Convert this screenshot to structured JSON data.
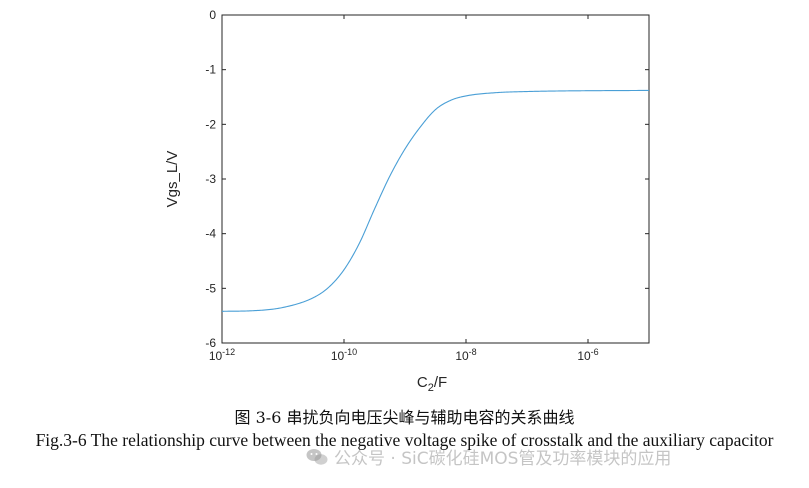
{
  "chart_data": {
    "type": "line",
    "xscale": "log",
    "xlim_exponent": [
      -12,
      -5
    ],
    "ylim": [
      -6,
      0
    ],
    "yticks": [
      0,
      -1,
      -2,
      -3,
      -4,
      -5,
      -6
    ],
    "ytick_labels": [
      "0",
      "-1",
      "-2",
      "-3",
      "-4",
      "-5",
      "-6"
    ],
    "xtick_exponents": [
      -12,
      -10,
      -8,
      -6
    ],
    "xtick_base": "10",
    "xtick_sup": [
      "-12",
      "-10",
      "-8",
      "-6"
    ],
    "xlabel_main": "C",
    "xlabel_sub": "2",
    "xlabel_unit": "/F",
    "ylabel": "Vgs_L/V",
    "series": [
      {
        "name": "Vgs_L",
        "color": "#4a9fd6",
        "log10_x": [
          -12,
          -11.5,
          -11,
          -10.5,
          -10.25,
          -10,
          -9.75,
          -9.5,
          -9.25,
          -9,
          -8.75,
          -8.5,
          -8.25,
          -8,
          -7.5,
          -7,
          -6.5,
          -6,
          -5
        ],
        "y": [
          -5.42,
          -5.41,
          -5.35,
          -5.17,
          -4.98,
          -4.66,
          -4.18,
          -3.55,
          -2.95,
          -2.45,
          -2.05,
          -1.73,
          -1.56,
          -1.48,
          -1.42,
          -1.4,
          -1.39,
          -1.385,
          -1.38
        ]
      }
    ]
  },
  "caption": {
    "chinese": "图 3-6 串扰负向电压尖峰与辅助电容的关系曲线",
    "english": "Fig.3-6 The relationship curve between the negative voltage spike of crosstalk and the auxiliary capacitor"
  },
  "watermark": {
    "text": "公众号 · SiC碳化硅MOS管及功率模块的应用",
    "icon": "wechat-icon"
  }
}
